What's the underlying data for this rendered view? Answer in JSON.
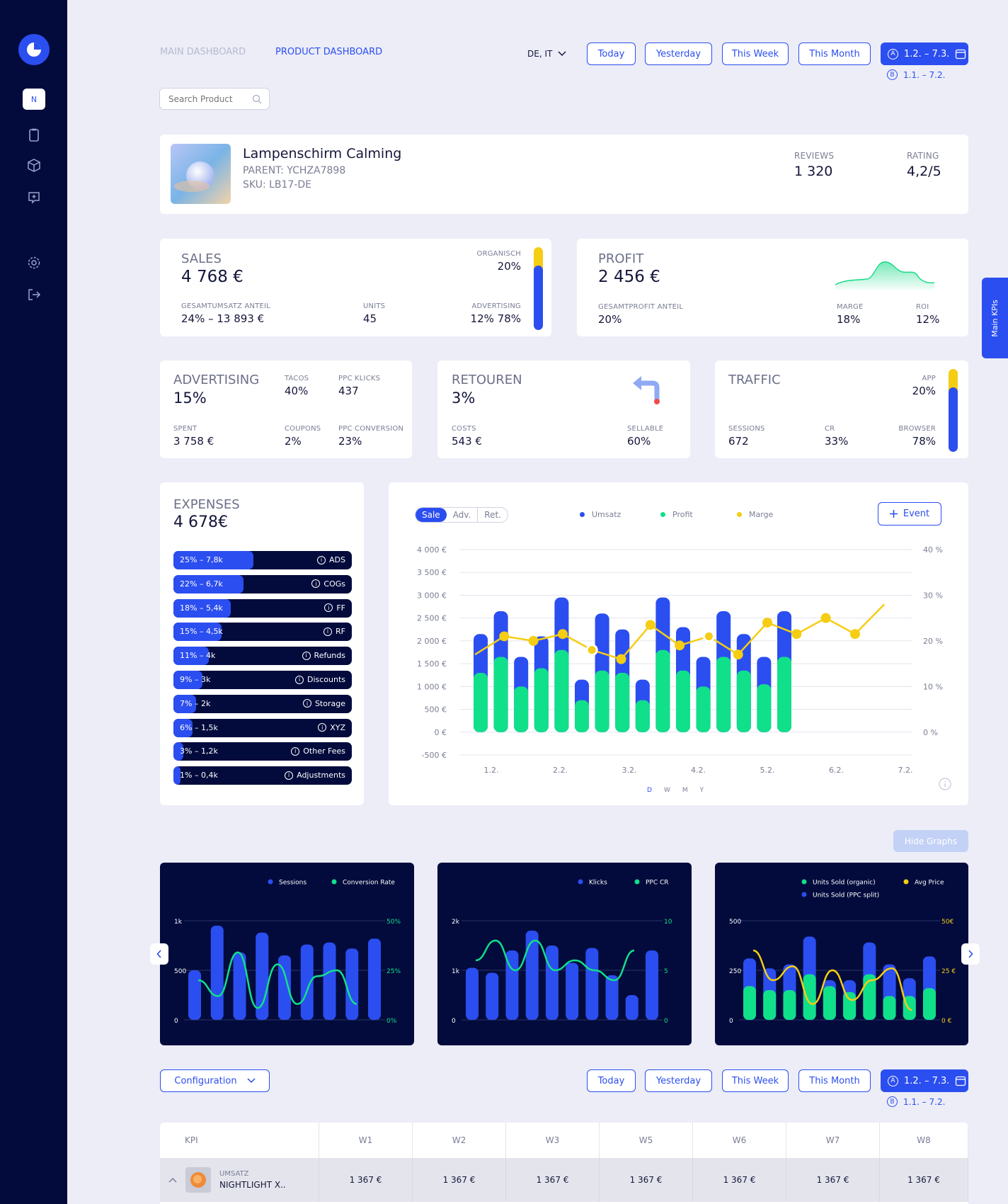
{
  "sidebar": {
    "avatar_label": "N"
  },
  "nav": {
    "tab_main": "MAIN DASHBOARD",
    "tab_product": "PRODUCT DASHBOARD",
    "region": "DE, IT"
  },
  "dates": {
    "today": "Today",
    "yesterday": "Yesterday",
    "week": "This Week",
    "month": "This Month",
    "range_a_mark": "A",
    "range_a": "1.2. – 7.3.",
    "range_b_mark": "B",
    "range_b": "1.1. – 7.2."
  },
  "search": {
    "placeholder": "Search Product"
  },
  "product": {
    "name": "Lampenschirm Calming",
    "parent": "PARENT:  YCHZA7898",
    "sku": "SKU: LB17-DE",
    "reviews_label": "REVIEWS",
    "reviews": "1 320",
    "rating_label": "RATING",
    "rating": "4,2/5"
  },
  "sales": {
    "title": "SALES",
    "value": "4 768 €",
    "share_label": "GESAMTUMSATZ ANTEIL",
    "share": "24% – 13 893 €",
    "units_label": "UNITS",
    "units": "45",
    "org_label": "ORGANISCH",
    "org": "20%",
    "adv_label": "ADVERTISING",
    "adv": "12% 78%",
    "adv_pct": 78
  },
  "profit": {
    "title": "PROFIT",
    "value": "2 456 €",
    "share_label": "GESAMTPROFIT ANTEIL",
    "share": "20%",
    "marge_label": "MARGE",
    "marge": "18%",
    "roi_label": "ROI",
    "roi": "12%"
  },
  "advertising": {
    "title": "ADVERTISING",
    "value": "15%",
    "tacos_label": "TACOS",
    "tacos": "40%",
    "klicks_label": "PPC KLICKS",
    "klicks": "437",
    "spent_label": "SPENT",
    "spent": "3 758 €",
    "coupons_label": "COUPONS",
    "coupons": "2%",
    "conv_label": "PPC CONVERSION",
    "conv": "23%"
  },
  "retouren": {
    "title": "RETOUREN",
    "value": "3%",
    "costs_label": "COSTS",
    "costs": "543 €",
    "sell_label": "SELLABLE",
    "sell": "60%"
  },
  "traffic": {
    "title": "TRAFFIC",
    "sessions_label": "SESSIONS",
    "sessions": "672",
    "cr_label": "CR",
    "cr": "33%",
    "app_label": "APP",
    "app": "20%",
    "browser_label": "BROWSER",
    "browser": "78%",
    "browser_pct": 78
  },
  "main_kpis": "Main KPIs",
  "expenses": {
    "title": "EXPENSES",
    "value": "4 678€",
    "rows": [
      {
        "left": "25% – 7,8k",
        "right": "ADS",
        "pct": 25
      },
      {
        "left": "22% – 6,7k",
        "right": "COGs",
        "pct": 22
      },
      {
        "left": "18% – 5,4k",
        "right": "FF",
        "pct": 18
      },
      {
        "left": "15% – 4,5k",
        "right": "RF",
        "pct": 15
      },
      {
        "left": "11% – 4k",
        "right": "Refunds",
        "pct": 11
      },
      {
        "left": "9% – 3k",
        "right": "Discounts",
        "pct": 9
      },
      {
        "left": "7% – 2k",
        "right": "Storage",
        "pct": 7
      },
      {
        "left": "6% – 1,5k",
        "right": "XYZ",
        "pct": 6
      },
      {
        "left": "3% – 1,2k",
        "right": "Other Fees",
        "pct": 3
      },
      {
        "left": "1% – 0,4k",
        "right": "Adjustments",
        "pct": 1
      }
    ]
  },
  "main_chart_ui": {
    "tab_sale": "Sale",
    "tab_adv": "Adv.",
    "tab_ret": "Ret.",
    "event": "Event",
    "periods": [
      "D",
      "W",
      "M",
      "Y"
    ],
    "leg_umsatz": "Umsatz",
    "leg_profit": "Profit",
    "leg_marge": "Marge"
  },
  "hide_graphs": "Hide Graphs",
  "config": "Configuration",
  "chart_data": [
    {
      "type": "bar",
      "title": "",
      "series": [
        {
          "name": "Umsatz",
          "values": [
            2150,
            2650,
            1650,
            2100,
            2950,
            1150,
            2600,
            2250,
            1150,
            2950,
            2300,
            1650,
            2650,
            2150,
            1650,
            2650
          ]
        },
        {
          "name": "Profit",
          "values": [
            1300,
            1650,
            1000,
            1400,
            1800,
            700,
            1350,
            1300,
            700,
            1800,
            1350,
            1000,
            1650,
            1350,
            1050,
            1650
          ]
        },
        {
          "name": "Marge",
          "values": [
            17,
            21,
            20,
            21.5,
            18,
            16,
            23.5,
            19,
            21,
            17,
            24,
            21.5,
            25,
            21.5,
            28
          ]
        }
      ],
      "yticks": [
        "4 000 €",
        "3 500 €",
        "3 000 €",
        "2 500 €",
        "2 000 €",
        "1 500 €",
        "1 000 €",
        "500 €",
        "0 €",
        "-500 €"
      ],
      "y2ticks": [
        "40 %",
        "30 %",
        "20 %",
        "10 %",
        "0 %"
      ],
      "xticks": [
        "1.2.",
        "2.2.",
        "3.2.",
        "4.2.",
        "5.2.",
        "6.2.",
        "7.2."
      ],
      "ylim": [
        -500,
        4000
      ],
      "y2lim": [
        0,
        40
      ]
    },
    {
      "type": "bar",
      "title": "",
      "series": [
        {
          "name": "Sessions",
          "values": [
            500,
            950,
            680,
            880,
            650,
            760,
            780,
            720,
            820
          ]
        },
        {
          "name": "Conversion Rate",
          "values": [
            20,
            12,
            34,
            6,
            28,
            8,
            22,
            25,
            8
          ]
        }
      ],
      "yticks": [
        "1k",
        "500",
        "0"
      ],
      "y2ticks": [
        "50%",
        "25%",
        "0%"
      ]
    },
    {
      "type": "bar",
      "title": "",
      "series": [
        {
          "name": "Klicks",
          "values": [
            1050,
            950,
            1400,
            1800,
            1500,
            1150,
            1450,
            900,
            500,
            1400
          ]
        },
        {
          "name": "PPC CR",
          "values": [
            6,
            8,
            5,
            8,
            5,
            6,
            5,
            4,
            7
          ]
        }
      ],
      "yticks": [
        "2k",
        "1k",
        "0"
      ],
      "y2ticks": [
        "10",
        "5",
        "0"
      ]
    },
    {
      "type": "bar",
      "title": "",
      "series": [
        {
          "name": "Units Sold (organic)",
          "values": [
            170,
            150,
            150,
            230,
            170,
            140,
            230,
            120,
            120,
            160
          ]
        },
        {
          "name": "Units Sold (PPC split)",
          "values": [
            310,
            260,
            280,
            420,
            200,
            200,
            390,
            280,
            210,
            320
          ]
        },
        {
          "name": "Avg Price",
          "values": [
            35,
            20,
            27,
            8,
            25,
            10,
            20,
            26,
            5
          ]
        }
      ],
      "yticks": [
        "500",
        "250",
        "0"
      ],
      "y2ticks": [
        "50€",
        "25 €",
        "0 €"
      ]
    }
  ],
  "mini_legends": {
    "c1a": "Sessions",
    "c1b": "Conversion Rate",
    "c2a": "Klicks",
    "c2b": "PPC CR",
    "c3a": "Units Sold (organic)",
    "c3b": "Avg Price",
    "c3c": "Units Sold (PPC split)"
  },
  "table": {
    "headers": [
      "KPI",
      "W1",
      "W2",
      "W3",
      "W5",
      "W6",
      "W7",
      "W8"
    ],
    "row": {
      "label": "UMSATZ",
      "name": "NIGHTLIGHT X..",
      "cells": [
        "1 367 €",
        "1 367 €",
        "1 367 €",
        "1 367 €",
        "1 367 €",
        "1 367 €",
        "1 367 €"
      ]
    }
  }
}
